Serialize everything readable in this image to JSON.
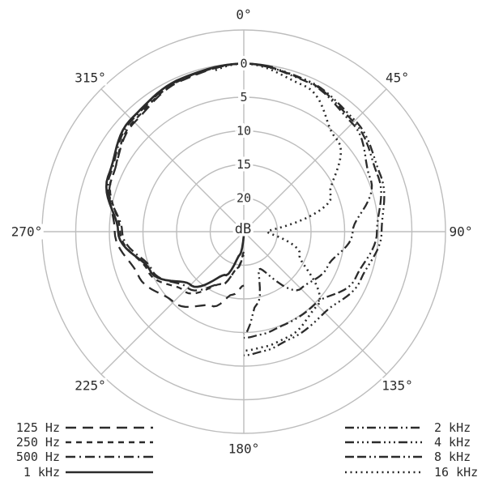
{
  "colors": {
    "background": "#ffffff",
    "grid": "#bdbdbd",
    "curve": "#2b2b2b",
    "text": "#2b2b2b"
  },
  "chart_data": {
    "type": "line",
    "polar": true,
    "title": "",
    "radial_axis": {
      "unit": "dB",
      "center_label": "dB",
      "ring_labels": [
        "0",
        "5",
        "10",
        "15",
        "20"
      ],
      "ring_values_db": [
        0,
        5,
        10,
        15,
        20
      ],
      "outer_boundary_ring": true,
      "direction": "attenuation increases toward center"
    },
    "angle_labels": [
      "0°",
      "45°",
      "90°",
      "135°",
      "180°",
      "225°",
      "270°",
      "315°"
    ],
    "angle_label_degrees": [
      0,
      45,
      90,
      135,
      180,
      225,
      270,
      315
    ],
    "off_axis_angles_deg": [
      0,
      22.5,
      45,
      67.5,
      90,
      112.5,
      135,
      157.5,
      170,
      180
    ],
    "series": [
      {
        "name": "125 Hz",
        "side": "left",
        "dash": "13 8",
        "width": 2.3,
        "attenuation_db": [
          0,
          0.7,
          2.0,
          3.8,
          5.8,
          8.0,
          10.2,
          13.0,
          15.5,
          17.0
        ]
      },
      {
        "name": "250 Hz",
        "side": "left",
        "dash": "7 6",
        "width": 2.3,
        "attenuation_db": [
          0,
          0.6,
          1.8,
          3.8,
          6.6,
          9.6,
          12.5,
          16.5,
          19.5,
          22.0
        ]
      },
      {
        "name": "500 Hz",
        "side": "left",
        "dash": "12 5 2 5",
        "width": 2.3,
        "attenuation_db": [
          0,
          0.5,
          1.5,
          3.4,
          6.9,
          10.2,
          13.2,
          16.5,
          19.5,
          21.5
        ]
      },
      {
        "name": "1 kHz",
        "side": "left",
        "dash": "",
        "width": 2.7,
        "attenuation_db": [
          0,
          0.4,
          1.3,
          3.2,
          6.3,
          9.9,
          13.8,
          18.0,
          21.5,
          24.5
        ]
      },
      {
        "name": "2 kHz",
        "side": "right",
        "dash": "11 4 2 4 2 4",
        "width": 2.3,
        "attenuation_db": [
          0,
          0.8,
          2.2,
          4.6,
          8.8,
          11.5,
          13.0,
          19.0,
          14.0,
          9.8
        ]
      },
      {
        "name": "4 kHz",
        "side": "right",
        "dash": "11 4 2 4 2 4 2 4",
        "width": 2.3,
        "attenuation_db": [
          0,
          0.6,
          1.6,
          3.0,
          4.5,
          6.2,
          8.0,
          7.6,
          7.0,
          6.6
        ]
      },
      {
        "name": "8 kHz",
        "side": "right",
        "dash": "11 4 11 4 2 4 2 4",
        "width": 2.3,
        "attenuation_db": [
          0,
          0.7,
          1.9,
          3.4,
          5.2,
          7.0,
          9.9,
          9.9,
          9.5,
          9.2
        ]
      },
      {
        "name": "16 kHz",
        "side": "right",
        "dash": "2 4.5",
        "width": 2.6,
        "attenuation_db": [
          0,
          1.5,
          5.5,
          11.0,
          21.5,
          16.0,
          9.5,
          8.0,
          7.6,
          7.3
        ]
      }
    ]
  },
  "legend": {
    "left": [
      {
        "label": "125 Hz",
        "series": 0
      },
      {
        "label": "250 Hz",
        "series": 1
      },
      {
        "label": "500 Hz",
        "series": 2
      },
      {
        "label": "1 kHz",
        "series": 3
      }
    ],
    "right": [
      {
        "label": "2 kHz",
        "series": 4
      },
      {
        "label": "4 kHz",
        "series": 5
      },
      {
        "label": "8 kHz",
        "series": 6
      },
      {
        "label": "16 kHz",
        "series": 7
      }
    ]
  }
}
